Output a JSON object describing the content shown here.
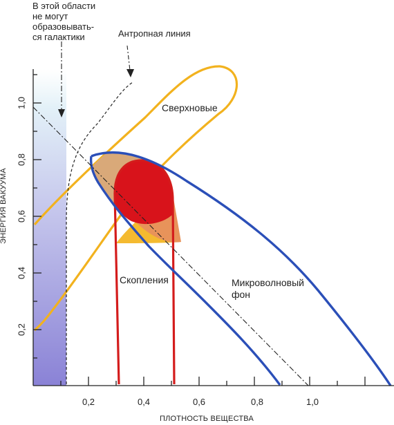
{
  "annotations": {
    "forbidden_zone": [
      "В этой области",
      "не могут",
      "образовывать-",
      "ся галактики"
    ],
    "anthropic_line": "Антропная линия"
  },
  "regions": {
    "supernovae": "Сверхновые",
    "clusters": "Скопления",
    "microwave": [
      "Микроволновый",
      "фон"
    ]
  },
  "axes": {
    "xlabel": "ПЛОТНОСТЬ ВЕЩЕСТВА",
    "ylabel": "ЭНЕРГИЯ ВАКУУМА",
    "x_ticks": [
      "0,2",
      "0,4",
      "0,6",
      "0,8",
      "1,0"
    ],
    "y_ticks": [
      "0,2",
      "0,4",
      "0,6",
      "0,8",
      "1,0"
    ]
  },
  "colors": {
    "supernovae": "#f2b21e",
    "microwave": "#2b4fb8",
    "clusters": "#d41c1c",
    "overlap_clusters": "#d8131b",
    "overlap_supernovae_microwave": "#d9a979",
    "overlap_all": "#e8935a",
    "forbidden_zone_top": "#e8f3f8",
    "forbidden_zone_bottom": "#8d86d8"
  }
}
